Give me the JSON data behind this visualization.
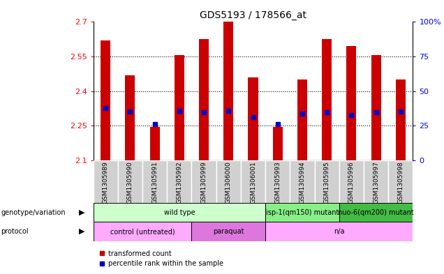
{
  "title": "GDS5193 / 178566_at",
  "samples": [
    "GSM1305989",
    "GSM1305990",
    "GSM1305991",
    "GSM1305992",
    "GSM1305999",
    "GSM1306000",
    "GSM1306001",
    "GSM1305993",
    "GSM1305994",
    "GSM1305995",
    "GSM1305996",
    "GSM1305997",
    "GSM1305998"
  ],
  "transformed_counts": [
    2.62,
    2.47,
    2.245,
    2.555,
    2.625,
    2.7,
    2.46,
    2.245,
    2.45,
    2.625,
    2.595,
    2.555,
    2.45
  ],
  "percentile_ranks": [
    2.325,
    2.31,
    2.258,
    2.315,
    2.308,
    2.313,
    2.288,
    2.256,
    2.303,
    2.308,
    2.297,
    2.308,
    2.31
  ],
  "y_min": 2.1,
  "y_max": 2.7,
  "y_ticks": [
    2.1,
    2.25,
    2.4,
    2.55,
    2.7
  ],
  "y_tick_labels": [
    "2.1",
    "2.25",
    "2.4",
    "2.55",
    "2.7"
  ],
  "y2_ticks": [
    0,
    25,
    50,
    75,
    100
  ],
  "y2_tick_labels": [
    "0",
    "25",
    "50",
    "75",
    "100%"
  ],
  "bar_color": "#cc0000",
  "dot_color": "#0000cc",
  "genotype_groups": [
    {
      "label": "wild type",
      "start": 0,
      "end": 7,
      "color": "#ccffcc"
    },
    {
      "label": "isp-1(qm150) mutant",
      "start": 7,
      "end": 10,
      "color": "#88ee88"
    },
    {
      "label": "nuo-6(qm200) mutant",
      "start": 10,
      "end": 13,
      "color": "#44bb44"
    }
  ],
  "protocol_groups": [
    {
      "label": "control (untreated)",
      "start": 0,
      "end": 4,
      "color": "#ffaaff"
    },
    {
      "label": "paraquat",
      "start": 4,
      "end": 7,
      "color": "#dd77dd"
    },
    {
      "label": "n/a",
      "start": 7,
      "end": 13,
      "color": "#ffaaff"
    }
  ],
  "legend_items": [
    {
      "label": "transformed count",
      "color": "#cc0000"
    },
    {
      "label": "percentile rank within the sample",
      "color": "#0000cc"
    }
  ]
}
